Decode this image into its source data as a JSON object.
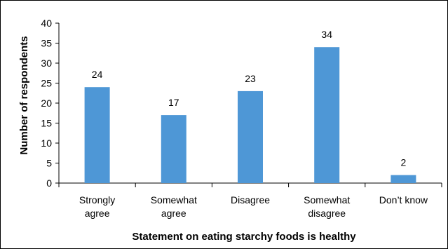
{
  "chart_data": {
    "type": "bar",
    "categories": [
      [
        "Strongly",
        "agree"
      ],
      [
        "Somewhat",
        "agree"
      ],
      [
        "Disagree"
      ],
      [
        "Somewhat",
        "disagree"
      ],
      [
        "Don’t know"
      ]
    ],
    "values": [
      24,
      17,
      23,
      34,
      2
    ],
    "data_labels": [
      "24",
      "17",
      "23",
      "34",
      "2"
    ],
    "yticks": [
      "0",
      "5",
      "10",
      "15",
      "20",
      "25",
      "30",
      "35",
      "40"
    ],
    "ylim": [
      0,
      40
    ],
    "xlabel": "Statement on eating starchy foods is healthy",
    "ylabel": "Number of respondents",
    "bar_color": "#4e97d6",
    "grid": false,
    "legend": "none"
  }
}
